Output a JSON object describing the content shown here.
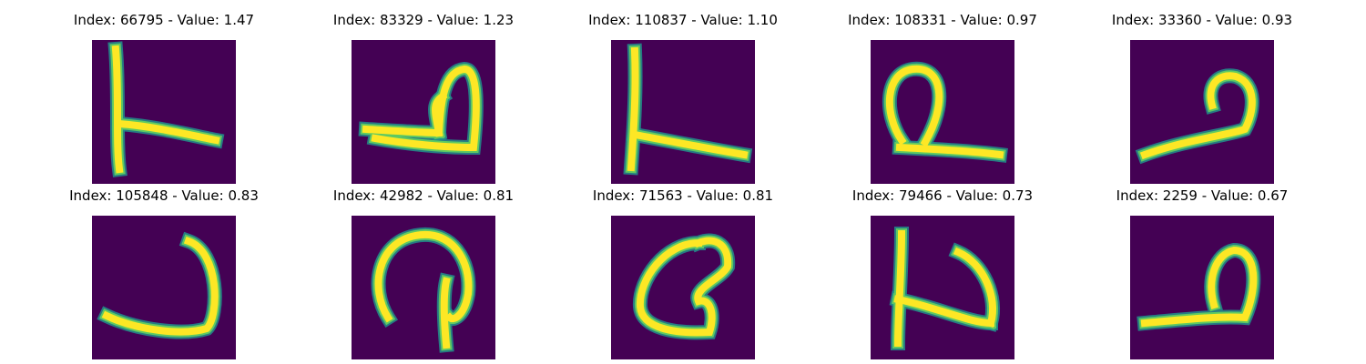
{
  "colors": {
    "background": "#440154",
    "stroke_core": "#fde725",
    "stroke_mid": "#5ec962",
    "stroke_edge": "#21918c"
  },
  "panels": [
    {
      "title": "Index: 66795 - Value: 1.47",
      "shape": "L-stick-tail"
    },
    {
      "title": "Index: 83329 - Value: 1.23",
      "shape": "loop-with-base"
    },
    {
      "title": "Index: 110837 - Value: 1.10",
      "shape": "L-stick-tail"
    },
    {
      "title": "Index: 108331 - Value: 0.97",
      "shape": "open-loop-base"
    },
    {
      "title": "Index: 33360 - Value: 0.93",
      "shape": "two-like"
    },
    {
      "title": "Index: 105848 - Value: 0.83",
      "shape": "hook"
    },
    {
      "title": "Index: 42982 - Value: 0.81",
      "shape": "loop-with-stem"
    },
    {
      "title": "Index: 71563 - Value: 0.81",
      "shape": "closed-loop"
    },
    {
      "title": "Index: 79466 - Value: 0.73",
      "shape": "zigzag"
    },
    {
      "title": "Index: 2259 - Value: 0.67",
      "shape": "small-loop-base"
    }
  ]
}
